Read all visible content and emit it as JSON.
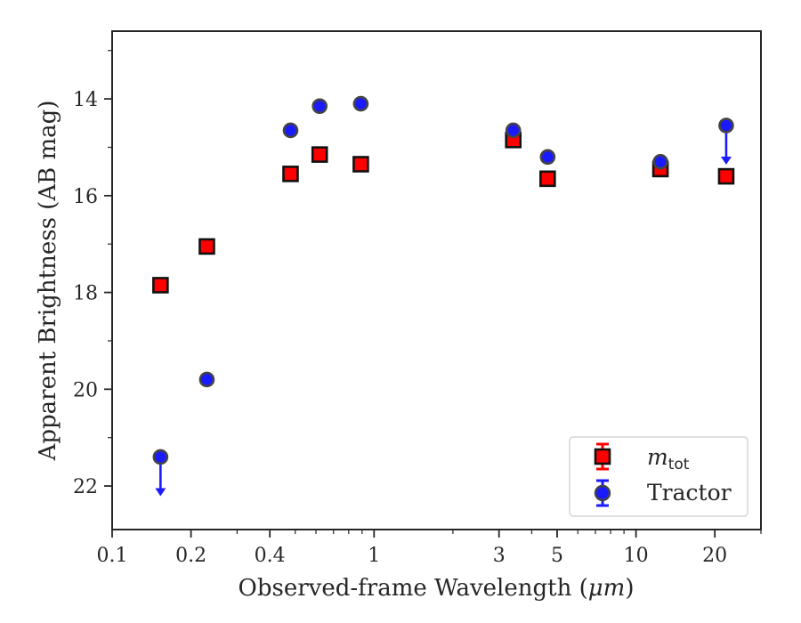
{
  "chart_data": {
    "type": "scatter",
    "xlabel_prefix": "Observed-frame Wavelength (",
    "xlabel_unit": "μm",
    "xlabel_suffix": ")",
    "ylabel": "Apparent Brightness (AB mag)",
    "x_scale": "log",
    "xlim": [
      0.1,
      30
    ],
    "ylim": [
      22.9,
      12.6
    ],
    "y_inverted": true,
    "x_ticks": [
      0.1,
      0.2,
      0.4,
      1,
      3,
      5,
      10,
      20
    ],
    "x_tick_labels": [
      "0.1",
      "0.2",
      "0.4",
      "1",
      "3",
      "5",
      "10",
      "20"
    ],
    "y_ticks": [
      14,
      16,
      18,
      20,
      22
    ],
    "y_tick_labels": [
      "14",
      "16",
      "18",
      "20",
      "22"
    ],
    "grid": false,
    "legend_position": "lower-right",
    "series": [
      {
        "name": "m",
        "name_sub": "tot",
        "marker": "square",
        "color": "#ff0000",
        "edge_color": "#111111",
        "x": [
          0.153,
          0.23,
          0.48,
          0.62,
          0.89,
          3.4,
          4.6,
          12.4,
          22.1
        ],
        "y": [
          17.85,
          17.05,
          15.55,
          15.15,
          15.35,
          14.85,
          15.65,
          15.45,
          15.6
        ]
      },
      {
        "name": "Tractor",
        "marker": "circle",
        "color": "#1a1aff",
        "edge_color": "#444444",
        "x": [
          0.153,
          0.23,
          0.48,
          0.62,
          0.89,
          3.4,
          4.6,
          12.4,
          22.1
        ],
        "y": [
          21.4,
          19.8,
          14.65,
          14.15,
          14.1,
          14.65,
          15.2,
          15.3,
          14.55
        ],
        "upper_limits": [
          true,
          false,
          false,
          false,
          false,
          false,
          false,
          false,
          true
        ]
      }
    ]
  }
}
